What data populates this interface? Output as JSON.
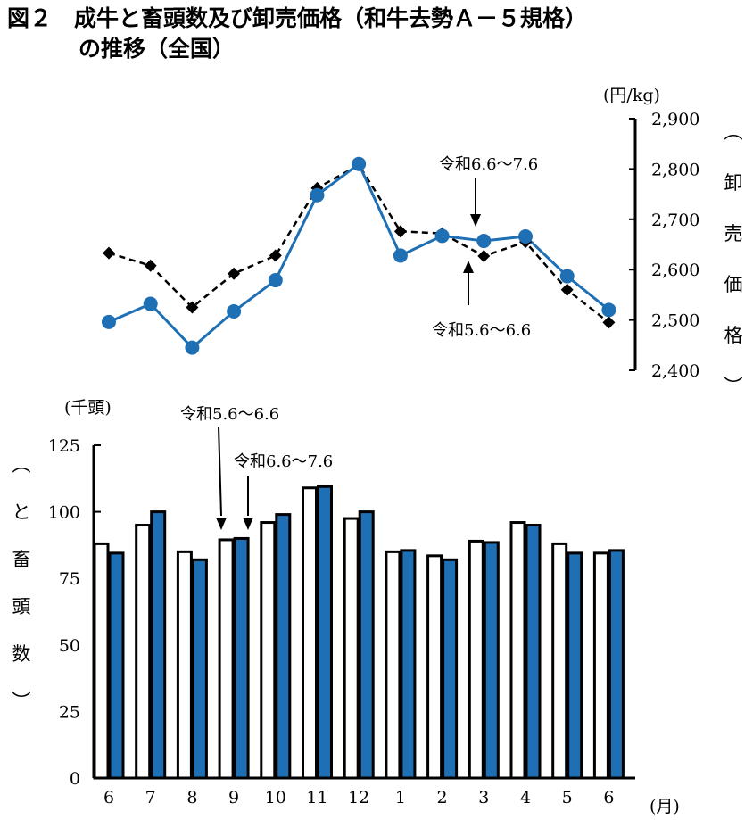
{
  "header": {
    "title_line1": "図２　成牛と畜頭数及び卸売価格（和牛去勢Ａ－５規格）",
    "title_line2": "の推移（全国）"
  },
  "chart_data": [
    {
      "type": "line",
      "categories": [
        "6",
        "7",
        "8",
        "9",
        "10",
        "11",
        "12",
        "1",
        "2",
        "3",
        "4",
        "5",
        "6"
      ],
      "series": [
        {
          "values": [
            2633,
            2608,
            2525,
            2592,
            2628,
            2762,
            2808,
            2676,
            2672,
            2627,
            2655,
            2560,
            2495
          ],
          "style": "dashed",
          "marker": "diamond",
          "color": "#000000"
        },
        {
          "values": [
            2496,
            2532,
            2445,
            2517,
            2579,
            2748,
            2810,
            2628,
            2667,
            2657,
            2666,
            2587,
            2520
          ],
          "style": "solid",
          "marker": "circle",
          "color": "#1f6fb5"
        }
      ],
      "ylim": [
        2400,
        2900
      ],
      "yticks": [
        "2,400",
        "2,500",
        "2,600",
        "2,700",
        "2,800",
        "2,900"
      ],
      "yaxis_side": "right",
      "yunit": "(円/kg)",
      "ylabel": [
        "︵",
        "卸",
        "売",
        "価",
        "格",
        "︶"
      ],
      "annotations": [
        {
          "text": "令和6.6～7.6",
          "target_category": 8,
          "arrow": "down"
        },
        {
          "text": "令和5.6～6.6",
          "target_category": 8,
          "arrow": "up"
        }
      ]
    },
    {
      "type": "bar",
      "categories": [
        "6",
        "7",
        "8",
        "9",
        "10",
        "11",
        "12",
        "1",
        "2",
        "3",
        "4",
        "5",
        "6"
      ],
      "series": [
        {
          "values": [
            88,
            95,
            85,
            89.5,
            96,
            109,
            97.5,
            85,
            83.5,
            89,
            96,
            88,
            84.5
          ],
          "fill": "#ffffff",
          "stroke": "#000000"
        },
        {
          "values": [
            84.5,
            100,
            82,
            90,
            99,
            109.5,
            100,
            85.5,
            82,
            88.5,
            95,
            84.5,
            85.5
          ],
          "fill": "#1f6fb5",
          "stroke": "#000000"
        }
      ],
      "ylim": [
        0,
        125
      ],
      "yticks": [
        "0",
        "25",
        "50",
        "75",
        "100",
        "125"
      ],
      "yunit": "(千頭)",
      "ylabel": [
        "︵",
        "と",
        "畜",
        "頭",
        "数",
        "︶"
      ],
      "xunit": "(月)",
      "annotations": [
        {
          "text": "令和5.6～6.6",
          "target_category": 3,
          "series": 0
        },
        {
          "text": "令和6.6～7.6",
          "target_category": 3,
          "series": 1
        }
      ]
    }
  ]
}
